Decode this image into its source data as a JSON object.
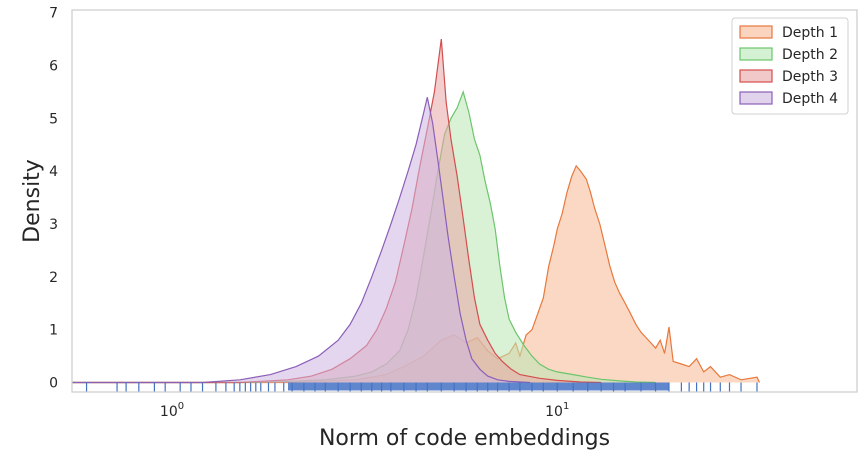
{
  "chart_data": {
    "type": "area",
    "xlabel": "Norm of code embeddings",
    "ylabel": "Density",
    "xscale": "log",
    "xlim": [
      0.55,
      60
    ],
    "ylim": [
      -0.18,
      7.05
    ],
    "yticks": [
      0,
      1,
      2,
      3,
      4,
      5,
      6,
      7
    ],
    "xticks": [
      {
        "value": 1,
        "label": "10",
        "sup": "0"
      },
      {
        "value": 10,
        "label": "10",
        "sup": "1"
      }
    ],
    "grid": false,
    "legend_position": "top-right",
    "rug": {
      "color": "#4472c4",
      "values": [
        0.6,
        0.72,
        0.76,
        0.82,
        0.9,
        0.96,
        1.05,
        1.12,
        1.2,
        1.3,
        1.38,
        1.45,
        1.5,
        1.55,
        1.6,
        1.65,
        1.7,
        1.78,
        1.85,
        1.95,
        2.05,
        2.2,
        2.35,
        2.5,
        2.7,
        2.9,
        3.1,
        3.3,
        3.5,
        3.7,
        4.0,
        4.3,
        4.6,
        5.0,
        5.4,
        5.8,
        6.2,
        6.6,
        7.0,
        7.5,
        8.0,
        8.6,
        9.2,
        10.0,
        11,
        12,
        13,
        14,
        15,
        16.5,
        18,
        19.5,
        21,
        22,
        23,
        24,
        25,
        26.5,
        28,
        30,
        33
      ]
    },
    "series": [
      {
        "name": "Depth 1",
        "stroke": "#e8783c",
        "fill": "#f7b892",
        "points": [
          [
            0.55,
            0
          ],
          [
            2.0,
            0.0
          ],
          [
            3.0,
            0.05
          ],
          [
            3.6,
            0.15
          ],
          [
            4.0,
            0.3
          ],
          [
            4.5,
            0.5
          ],
          [
            5.0,
            0.8
          ],
          [
            5.4,
            0.9
          ],
          [
            5.8,
            0.75
          ],
          [
            6.2,
            0.85
          ],
          [
            6.6,
            0.6
          ],
          [
            7.0,
            0.45
          ],
          [
            7.5,
            0.55
          ],
          [
            7.8,
            0.75
          ],
          [
            8.0,
            0.5
          ],
          [
            8.3,
            0.9
          ],
          [
            8.6,
            1.0
          ],
          [
            8.9,
            1.3
          ],
          [
            9.2,
            1.6
          ],
          [
            9.5,
            2.2
          ],
          [
            9.8,
            2.6
          ],
          [
            10.0,
            2.9
          ],
          [
            10.3,
            3.2
          ],
          [
            10.6,
            3.6
          ],
          [
            10.9,
            3.9
          ],
          [
            11.2,
            4.1
          ],
          [
            11.5,
            4.0
          ],
          [
            11.9,
            3.85
          ],
          [
            12.2,
            3.6
          ],
          [
            12.5,
            3.3
          ],
          [
            12.9,
            3.0
          ],
          [
            13.3,
            2.6
          ],
          [
            13.7,
            2.2
          ],
          [
            14.1,
            1.9
          ],
          [
            14.5,
            1.7
          ],
          [
            15.0,
            1.5
          ],
          [
            15.5,
            1.3
          ],
          [
            16.0,
            1.1
          ],
          [
            16.5,
            0.95
          ],
          [
            17.0,
            0.85
          ],
          [
            17.5,
            0.75
          ],
          [
            18.0,
            0.65
          ],
          [
            18.5,
            0.8
          ],
          [
            19.0,
            0.55
          ],
          [
            19.5,
            1.05
          ],
          [
            20.0,
            0.4
          ],
          [
            21.0,
            0.35
          ],
          [
            22.0,
            0.3
          ],
          [
            23.0,
            0.45
          ],
          [
            24.0,
            0.2
          ],
          [
            25.0,
            0.3
          ],
          [
            26.5,
            0.1
          ],
          [
            28.0,
            0.15
          ],
          [
            30.0,
            0.05
          ],
          [
            33.0,
            0.1
          ],
          [
            33.5,
            0
          ]
        ]
      },
      {
        "name": "Depth 2",
        "stroke": "#6cc46c",
        "fill": "#b9e7b5",
        "points": [
          [
            0.55,
            0
          ],
          [
            1.5,
            0.0
          ],
          [
            2.0,
            0.02
          ],
          [
            2.5,
            0.05
          ],
          [
            3.0,
            0.12
          ],
          [
            3.3,
            0.2
          ],
          [
            3.6,
            0.35
          ],
          [
            3.9,
            0.6
          ],
          [
            4.1,
            1.0
          ],
          [
            4.3,
            1.6
          ],
          [
            4.5,
            2.4
          ],
          [
            4.7,
            3.2
          ],
          [
            4.9,
            4.0
          ],
          [
            5.1,
            4.7
          ],
          [
            5.3,
            5.0
          ],
          [
            5.5,
            5.2
          ],
          [
            5.7,
            5.5
          ],
          [
            5.9,
            5.1
          ],
          [
            6.1,
            4.6
          ],
          [
            6.3,
            4.3
          ],
          [
            6.5,
            3.8
          ],
          [
            6.7,
            3.4
          ],
          [
            6.9,
            2.9
          ],
          [
            7.1,
            2.2
          ],
          [
            7.3,
            1.6
          ],
          [
            7.5,
            1.2
          ],
          [
            7.8,
            0.95
          ],
          [
            8.2,
            0.7
          ],
          [
            8.6,
            0.5
          ],
          [
            9.0,
            0.35
          ],
          [
            9.5,
            0.25
          ],
          [
            10.0,
            0.2
          ],
          [
            11.0,
            0.15
          ],
          [
            12.0,
            0.1
          ],
          [
            13.0,
            0.06
          ],
          [
            14.5,
            0.03
          ],
          [
            16.0,
            0.01
          ],
          [
            18.0,
            0
          ]
        ]
      },
      {
        "name": "Depth 3",
        "stroke": "#d44e4e",
        "fill": "#e7a5a5",
        "points": [
          [
            0.55,
            0
          ],
          [
            1.5,
            0.0
          ],
          [
            2.0,
            0.05
          ],
          [
            2.3,
            0.12
          ],
          [
            2.6,
            0.25
          ],
          [
            2.9,
            0.45
          ],
          [
            3.2,
            0.7
          ],
          [
            3.4,
            1.0
          ],
          [
            3.6,
            1.4
          ],
          [
            3.8,
            1.9
          ],
          [
            4.0,
            2.6
          ],
          [
            4.2,
            3.3
          ],
          [
            4.4,
            4.1
          ],
          [
            4.6,
            4.8
          ],
          [
            4.8,
            5.5
          ],
          [
            5.0,
            6.5
          ],
          [
            5.15,
            5.3
          ],
          [
            5.3,
            4.6
          ],
          [
            5.5,
            3.9
          ],
          [
            5.7,
            3.1
          ],
          [
            5.9,
            2.3
          ],
          [
            6.1,
            1.6
          ],
          [
            6.3,
            1.1
          ],
          [
            6.6,
            0.8
          ],
          [
            6.9,
            0.55
          ],
          [
            7.2,
            0.4
          ],
          [
            7.6,
            0.25
          ],
          [
            8.0,
            0.15
          ],
          [
            9.0,
            0.08
          ],
          [
            10.0,
            0.04
          ],
          [
            11.5,
            0.01
          ],
          [
            13.0,
            0
          ]
        ]
      },
      {
        "name": "Depth 4",
        "stroke": "#8b5fb8",
        "fill": "#cdb5e0",
        "points": [
          [
            0.55,
            0
          ],
          [
            1.2,
            0.0
          ],
          [
            1.5,
            0.05
          ],
          [
            1.8,
            0.15
          ],
          [
            2.1,
            0.3
          ],
          [
            2.4,
            0.5
          ],
          [
            2.7,
            0.8
          ],
          [
            2.9,
            1.1
          ],
          [
            3.1,
            1.5
          ],
          [
            3.3,
            2.0
          ],
          [
            3.5,
            2.5
          ],
          [
            3.7,
            3.0
          ],
          [
            3.9,
            3.5
          ],
          [
            4.1,
            4.0
          ],
          [
            4.3,
            4.5
          ],
          [
            4.5,
            5.1
          ],
          [
            4.6,
            5.4
          ],
          [
            4.75,
            4.9
          ],
          [
            4.9,
            4.2
          ],
          [
            5.05,
            3.5
          ],
          [
            5.2,
            2.8
          ],
          [
            5.4,
            2.0
          ],
          [
            5.6,
            1.3
          ],
          [
            5.8,
            0.8
          ],
          [
            6.0,
            0.45
          ],
          [
            6.3,
            0.25
          ],
          [
            6.6,
            0.12
          ],
          [
            7.0,
            0.05
          ],
          [
            7.5,
            0.02
          ],
          [
            8.5,
            0
          ]
        ]
      }
    ]
  }
}
